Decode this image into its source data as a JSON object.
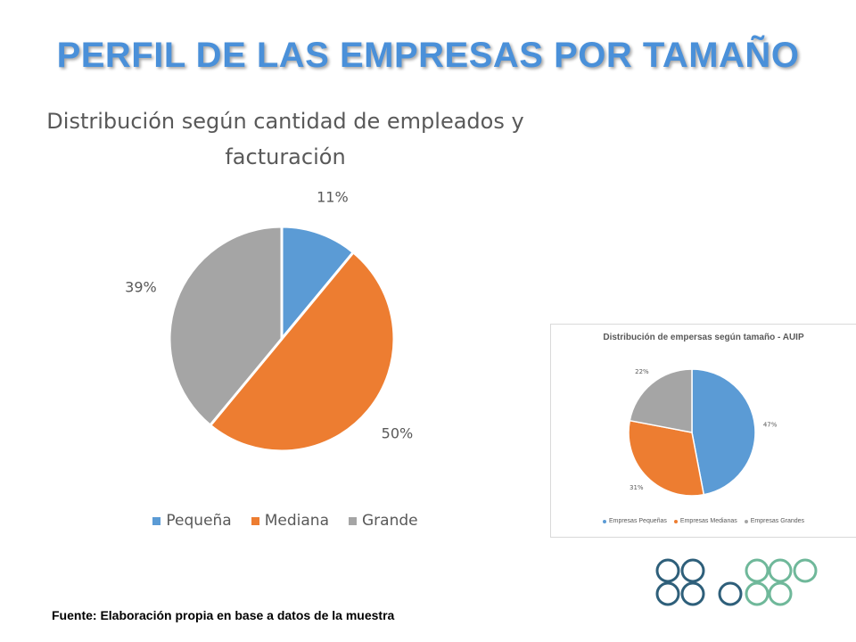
{
  "slide": {
    "title": "PERFIL DE LAS EMPRESAS POR TAMAÑO",
    "source": "Fuente: Elaboración propia en base a datos de la muestra"
  },
  "chart_data": [
    {
      "type": "pie",
      "title_lines": [
        "Distribución según cantidad de empleados y",
        "facturación"
      ],
      "categories": [
        "Pequeña",
        "Mediana",
        "Grande"
      ],
      "values": [
        11,
        50,
        39
      ],
      "labels": [
        "11%",
        "50%",
        "39%"
      ],
      "colors": [
        "#5b9bd5",
        "#ed7d31",
        "#a5a5a5"
      ],
      "legend_position": "bottom"
    },
    {
      "type": "pie",
      "title": "Distribución de empersas según tamaño - AUIP",
      "categories": [
        "Empresas Pequeñas",
        "Empresas Medianas",
        "Empresas Grandes"
      ],
      "values": [
        47,
        31,
        22
      ],
      "labels": [
        "47%",
        "31%",
        "22%"
      ],
      "colors": [
        "#5b9bd5",
        "#ed7d31",
        "#a5a5a5"
      ],
      "legend_position": "bottom"
    }
  ],
  "logo": {
    "colors": [
      "#2e5f7a",
      "#6fb89a"
    ]
  }
}
